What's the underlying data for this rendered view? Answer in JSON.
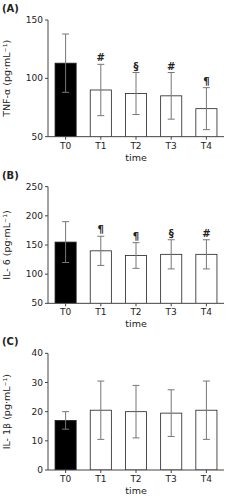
{
  "chart_data": [
    {
      "type": "bar",
      "title": "(A)",
      "xlabel": "time",
      "ylabel": "TNF-α (pg·mL⁻¹)",
      "categories": [
        "T0",
        "T1",
        "T2",
        "T3",
        "T4"
      ],
      "values": [
        113,
        90,
        87,
        85,
        74
      ],
      "errors": [
        25,
        22,
        18,
        20,
        18
      ],
      "colors": [
        "black",
        "white",
        "white",
        "white",
        "white"
      ],
      "annotations": [
        {
          "category": "T1",
          "text": "#"
        },
        {
          "category": "T2",
          "text": "§"
        },
        {
          "category": "T3",
          "text": "#"
        },
        {
          "category": "T4",
          "text": "¶"
        }
      ],
      "ylim": [
        50,
        150
      ],
      "yticks": [
        50,
        100,
        150
      ]
    },
    {
      "type": "bar",
      "title": "(B)",
      "xlabel": "time",
      "ylabel": "IL- 6 (pg·mL⁻¹)",
      "categories": [
        "T0",
        "T1",
        "T2",
        "T3",
        "T4"
      ],
      "values": [
        155,
        140,
        132,
        134,
        134
      ],
      "errors": [
        35,
        25,
        22,
        25,
        25
      ],
      "colors": [
        "black",
        "white",
        "white",
        "white",
        "white"
      ],
      "annotations": [
        {
          "category": "T1",
          "text": "¶"
        },
        {
          "category": "T2",
          "text": "¶"
        },
        {
          "category": "T3",
          "text": "§"
        },
        {
          "category": "T4",
          "text": "#"
        }
      ],
      "ylim": [
        50,
        250
      ],
      "yticks": [
        50,
        100,
        150,
        200,
        250
      ]
    },
    {
      "type": "bar",
      "title": "(C)",
      "xlabel": "time",
      "ylabel": "IL- 1β (pg·mL⁻¹)",
      "categories": [
        "T0",
        "T1",
        "T2",
        "T3",
        "T4"
      ],
      "values": [
        17,
        20.5,
        20,
        19.5,
        20.5
      ],
      "errors": [
        3,
        10,
        9,
        8,
        10
      ],
      "colors": [
        "black",
        "white",
        "white",
        "white",
        "white"
      ],
      "ylim": [
        0,
        40
      ],
      "yticks": [
        0,
        10,
        20,
        30,
        40
      ]
    }
  ]
}
